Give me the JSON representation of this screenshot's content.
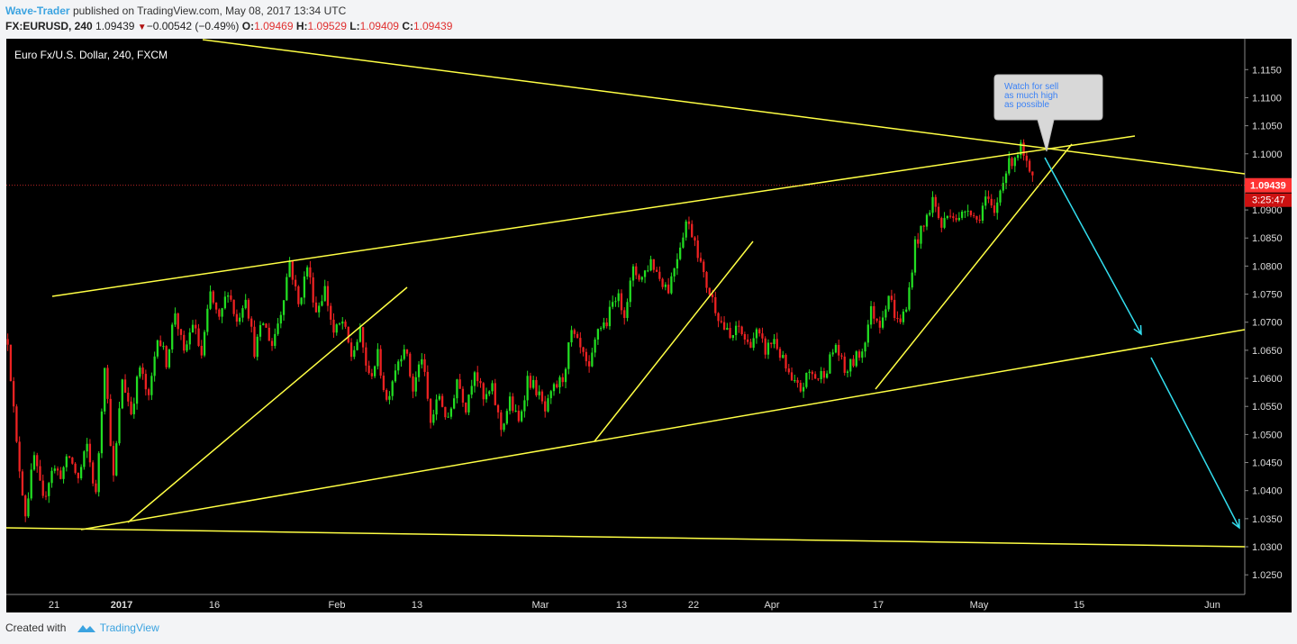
{
  "header": {
    "author": "Wave-Trader",
    "published": "published on TradingView.com, May 08, 2017 13:34 UTC",
    "symbol": "FX:EURUSD, 240",
    "last": "1.09439",
    "change": "−0.00542 (−0.49%)",
    "o_label": "O:",
    "o_value": "1.09469",
    "h_label": "H:",
    "h_value": "1.09529",
    "l_label": "L:",
    "l_value": "1.09409",
    "c_label": "C:",
    "c_value": "1.09439"
  },
  "footer": {
    "created_with": "Created with",
    "brand": "TradingView"
  },
  "chart_data": {
    "type": "candlestick",
    "title": "Euro Fx/U.S. Dollar, 240, FXCM",
    "interval": "240",
    "ylim": [
      1.0215,
      1.1205
    ],
    "y_ticks": [
      "1.1150",
      "1.1100",
      "1.1050",
      "1.1000",
      "1.0950",
      "1.0900",
      "1.0850",
      "1.0800",
      "1.0750",
      "1.0700",
      "1.0650",
      "1.0600",
      "1.0550",
      "1.0500",
      "1.0450",
      "1.0400",
      "1.0350",
      "1.0300",
      "1.0250"
    ],
    "x_ticks": [
      "21",
      "2017",
      "16",
      "Feb",
      "13",
      "Mar",
      "13",
      "22",
      "Apr",
      "17",
      "May",
      "15",
      "Jun"
    ],
    "last_price": {
      "value": 1.09439,
      "label": "1.09439",
      "countdown": "3:25:47",
      "color": "#ff3333"
    },
    "annotation": {
      "text": "Watch for sell as much high as possible",
      "price": 1.0999
    },
    "colors": {
      "up": "#22dd22",
      "down": "#ee2222",
      "trendline": "#ffff44",
      "arrow": "#33ddee",
      "background": "#000000"
    },
    "price_path": [
      [
        0,
        1.067
      ],
      [
        3,
        1.048
      ],
      [
        6,
        1.036
      ],
      [
        9,
        1.046
      ],
      [
        12,
        1.038
      ],
      [
        15,
        1.044
      ],
      [
        18,
        1.043
      ],
      [
        21,
        1.046
      ],
      [
        24,
        1.042
      ],
      [
        27,
        1.048
      ],
      [
        30,
        1.039
      ],
      [
        33,
        1.063
      ],
      [
        36,
        1.042
      ],
      [
        39,
        1.06
      ],
      [
        42,
        1.054
      ],
      [
        45,
        1.062
      ],
      [
        48,
        1.056
      ],
      [
        51,
        1.068
      ],
      [
        54,
        1.063
      ],
      [
        57,
        1.072
      ],
      [
        60,
        1.064
      ],
      [
        63,
        1.07
      ],
      [
        66,
        1.064
      ],
      [
        69,
        1.075
      ],
      [
        72,
        1.07
      ],
      [
        75,
        1.076
      ],
      [
        78,
        1.07
      ],
      [
        81,
        1.075
      ],
      [
        84,
        1.065
      ],
      [
        87,
        1.07
      ],
      [
        90,
        1.066
      ],
      [
        93,
        1.072
      ],
      [
        96,
        1.081
      ],
      [
        99,
        1.073
      ],
      [
        102,
        1.08
      ],
      [
        105,
        1.072
      ],
      [
        108,
        1.076
      ],
      [
        111,
        1.068
      ],
      [
        114,
        1.07
      ],
      [
        117,
        1.064
      ],
      [
        120,
        1.068
      ],
      [
        123,
        1.06
      ],
      [
        126,
        1.064
      ],
      [
        129,
        1.056
      ],
      [
        132,
        1.062
      ],
      [
        135,
        1.066
      ],
      [
        138,
        1.058
      ],
      [
        141,
        1.064
      ],
      [
        144,
        1.052
      ],
      [
        147,
        1.057
      ],
      [
        150,
        1.052
      ],
      [
        153,
        1.06
      ],
      [
        156,
        1.055
      ],
      [
        159,
        1.062
      ],
      [
        162,
        1.056
      ],
      [
        165,
        1.058
      ],
      [
        168,
        1.051
      ],
      [
        171,
        1.056
      ],
      [
        174,
        1.052
      ],
      [
        177,
        1.06
      ],
      [
        180,
        1.058
      ],
      [
        183,
        1.054
      ],
      [
        186,
        1.058
      ],
      [
        189,
        1.06
      ],
      [
        192,
        1.068
      ],
      [
        195,
        1.065
      ],
      [
        198,
        1.061
      ],
      [
        201,
        1.069
      ],
      [
        204,
        1.07
      ],
      [
        207,
        1.075
      ],
      [
        210,
        1.072
      ],
      [
        213,
        1.079
      ],
      [
        216,
        1.078
      ],
      [
        219,
        1.081
      ],
      [
        222,
        1.078
      ],
      [
        225,
        1.076
      ],
      [
        228,
        1.082
      ],
      [
        231,
        1.088
      ],
      [
        234,
        1.085
      ],
      [
        237,
        1.078
      ],
      [
        240,
        1.074
      ],
      [
        243,
        1.07
      ],
      [
        246,
        1.067
      ],
      [
        249,
        1.069
      ],
      [
        252,
        1.066
      ],
      [
        255,
        1.068
      ],
      [
        258,
        1.065
      ],
      [
        261,
        1.067
      ],
      [
        264,
        1.063
      ],
      [
        267,
        1.059
      ],
      [
        270,
        1.058
      ],
      [
        273,
        1.061
      ],
      [
        276,
        1.06
      ],
      [
        279,
        1.062
      ],
      [
        282,
        1.066
      ],
      [
        285,
        1.061
      ],
      [
        288,
        1.063
      ],
      [
        291,
        1.065
      ],
      [
        294,
        1.072
      ],
      [
        297,
        1.07
      ],
      [
        300,
        1.075
      ],
      [
        303,
        1.07
      ],
      [
        306,
        1.072
      ],
      [
        309,
        1.084
      ],
      [
        312,
        1.087
      ],
      [
        315,
        1.092
      ],
      [
        318,
        1.087
      ],
      [
        321,
        1.09
      ],
      [
        324,
        1.088
      ],
      [
        327,
        1.091
      ],
      [
        330,
        1.088
      ],
      [
        333,
        1.092
      ],
      [
        336,
        1.089
      ],
      [
        339,
        1.096
      ],
      [
        342,
        1.099
      ],
      [
        345,
        1.101
      ],
      [
        348,
        1.096
      ],
      [
        350,
        1.0944
      ]
    ]
  }
}
